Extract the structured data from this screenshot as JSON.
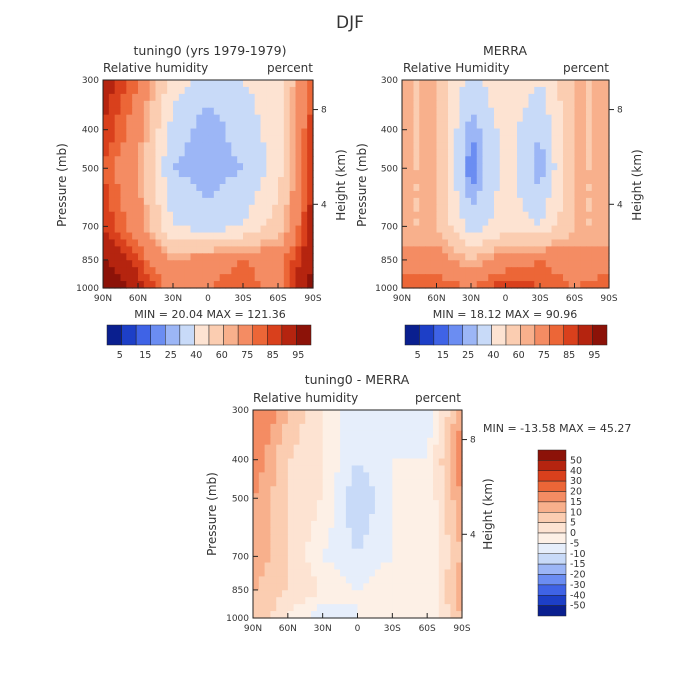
{
  "page_title": "DJF",
  "palettes": {
    "full": [
      "#0a1f8f",
      "#1d3fc7",
      "#3f63e6",
      "#6b8df2",
      "#9cb6f6",
      "#c8daf8",
      "#fde3d2",
      "#fbcdb1",
      "#f8b08c",
      "#f48c63",
      "#ec6637",
      "#d9401c",
      "#b5240f",
      "#8c1208"
    ],
    "diff": [
      "#0a1f8f",
      "#1d3fc7",
      "#3f63e6",
      "#6b8df2",
      "#9cb6f6",
      "#c8daf8",
      "#e6eefb",
      "#fdf0e6",
      "#fde3d2",
      "#fbcdb1",
      "#f8b08c",
      "#f48c63",
      "#ec6637",
      "#d9401c",
      "#b5240f",
      "#8c1208"
    ]
  },
  "chart_data": [
    {
      "type": "heatmap",
      "title": "tuning0 (yrs 1979-1979)",
      "left_subtitle": "Relative humidity",
      "right_subtitle": "percent",
      "ylabel": "Pressure (mb)",
      "ylabel_right": "Height (km)",
      "xticks": [
        "90N",
        "60N",
        "30N",
        "0",
        "30S",
        "60S",
        "90S"
      ],
      "yticks": [
        "300",
        "400",
        "500",
        "700",
        "850",
        "1000"
      ],
      "height_ticks": [
        "8",
        "4"
      ],
      "stats": "MIN =  20.04   MAX = 121.36",
      "colorbar_labels": [
        "5",
        "15",
        "25",
        "40",
        "60",
        "75",
        "85",
        "95"
      ],
      "x": [
        90,
        60,
        30,
        0,
        -30,
        -60,
        -90
      ],
      "pressure": [
        300,
        400,
        500,
        700,
        850,
        1000
      ],
      "values": [
        [
          90,
          75,
          45,
          35,
          40,
          45,
          80
        ],
        [
          85,
          70,
          35,
          25,
          35,
          45,
          85
        ],
        [
          80,
          65,
          30,
          25,
          30,
          45,
          85
        ],
        [
          85,
          70,
          40,
          35,
          40,
          55,
          90
        ],
        [
          95,
          80,
          65,
          70,
          75,
          70,
          95
        ],
        [
          105,
          90,
          70,
          75,
          80,
          70,
          100
        ]
      ]
    },
    {
      "type": "heatmap",
      "title": "MERRA",
      "left_subtitle": "Relative Humidity",
      "right_subtitle": "percent",
      "ylabel": "Pressure (mb)",
      "ylabel_right": "Height (km)",
      "xticks": [
        "90N",
        "60N",
        "30N",
        "0",
        "30S",
        "60S",
        "90S"
      ],
      "yticks": [
        "300",
        "400",
        "500",
        "700",
        "850",
        "1000"
      ],
      "height_ticks": [
        "8",
        "4"
      ],
      "stats": "MIN =  18.12   MAX =  90.96",
      "colorbar_labels": [
        "5",
        "15",
        "25",
        "40",
        "60",
        "75",
        "85",
        "95"
      ],
      "x": [
        90,
        60,
        30,
        0,
        -30,
        -60,
        -90
      ],
      "pressure": [
        300,
        400,
        500,
        700,
        850,
        1000
      ],
      "values": [
        [
          60,
          60,
          35,
          50,
          40,
          60,
          60
        ],
        [
          60,
          60,
          25,
          45,
          30,
          60,
          60
        ],
        [
          60,
          60,
          20,
          45,
          25,
          60,
          60
        ],
        [
          60,
          60,
          35,
          45,
          40,
          60,
          60
        ],
        [
          70,
          70,
          60,
          70,
          75,
          70,
          70
        ],
        [
          80,
          80,
          75,
          85,
          80,
          75,
          80
        ]
      ]
    },
    {
      "type": "heatmap",
      "title": "tuning0 - MERRA",
      "left_subtitle": "Relative humidity",
      "right_subtitle": "percent",
      "ylabel": "Pressure (mb)",
      "ylabel_right": "Height (km)",
      "xticks": [
        "90N",
        "60N",
        "30N",
        "0",
        "30S",
        "60S",
        "90S"
      ],
      "yticks": [
        "300",
        "400",
        "500",
        "700",
        "850",
        "1000"
      ],
      "height_ticks": [
        "8",
        "4"
      ],
      "stats": "MIN = -13.58   MAX =  45.27",
      "colorbar_labels": [
        "50",
        "40",
        "30",
        "20",
        "15",
        "10",
        "5",
        "0",
        "-5",
        "-10",
        "-15",
        "-20",
        "-30",
        "-40",
        "-50"
      ],
      "x": [
        90,
        60,
        30,
        0,
        -30,
        -60,
        -90
      ],
      "pressure": [
        300,
        400,
        500,
        700,
        850,
        1000
      ],
      "values": [
        [
          30,
          15,
          5,
          -5,
          0,
          -5,
          20
        ],
        [
          25,
          10,
          5,
          -5,
          0,
          0,
          25
        ],
        [
          20,
          10,
          5,
          -10,
          0,
          0,
          20
        ],
        [
          20,
          10,
          0,
          -5,
          0,
          0,
          15
        ],
        [
          15,
          10,
          5,
          0,
          5,
          0,
          20
        ],
        [
          15,
          5,
          -5,
          0,
          0,
          0,
          15
        ]
      ]
    }
  ]
}
